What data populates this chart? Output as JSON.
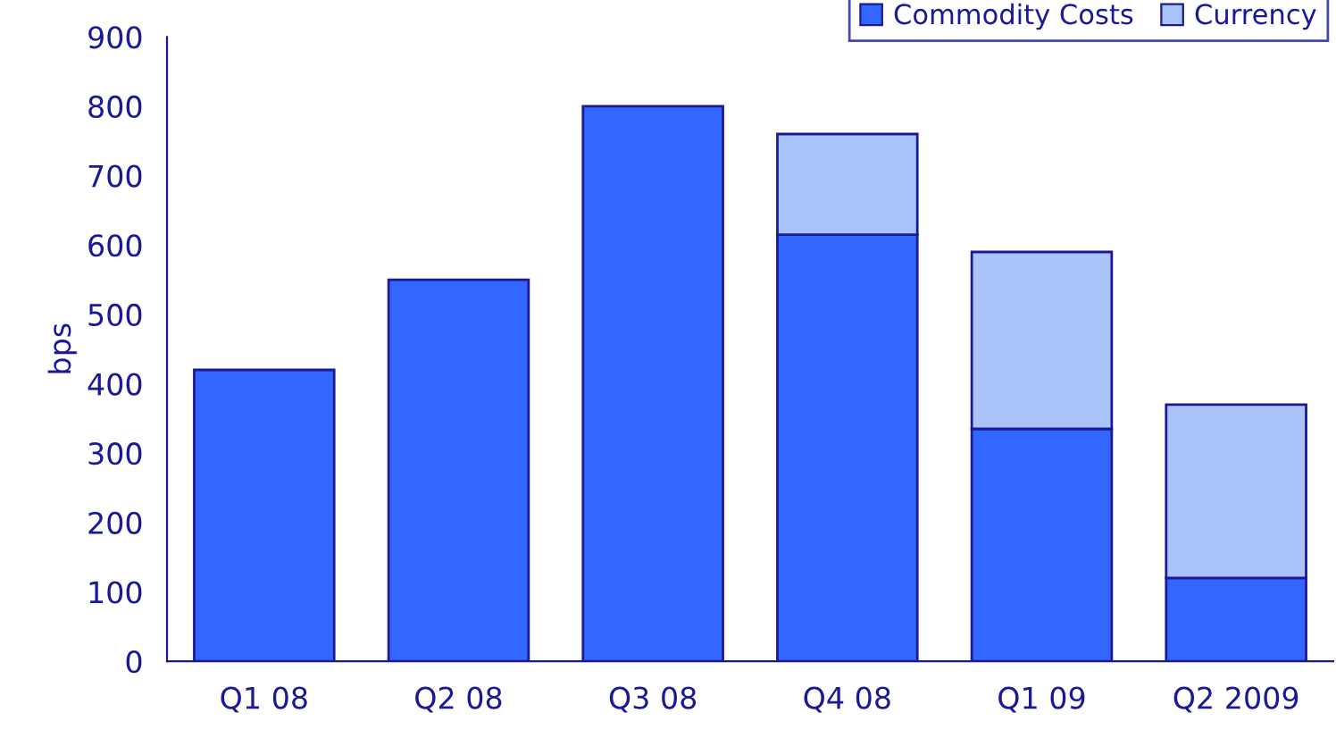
{
  "chart_data": {
    "type": "bar",
    "stacked": true,
    "ylabel": "bps",
    "categories": [
      "Q1 08",
      "Q2 08",
      "Q3 08",
      "Q4 08",
      "Q1 09",
      "Q2 2009"
    ],
    "series": [
      {
        "name": "Commodity Costs",
        "color": "#3366ff",
        "values": [
          420,
          550,
          800,
          615,
          335,
          120
        ]
      },
      {
        "name": "Currency",
        "color": "#aac4fa",
        "values": [
          null,
          null,
          null,
          145,
          255,
          250
        ]
      }
    ],
    "ylim": [
      0,
      900
    ],
    "yticks": [
      0,
      100,
      200,
      300,
      400,
      500,
      600,
      700,
      800,
      900
    ],
    "grid": false,
    "legend": "top right"
  }
}
